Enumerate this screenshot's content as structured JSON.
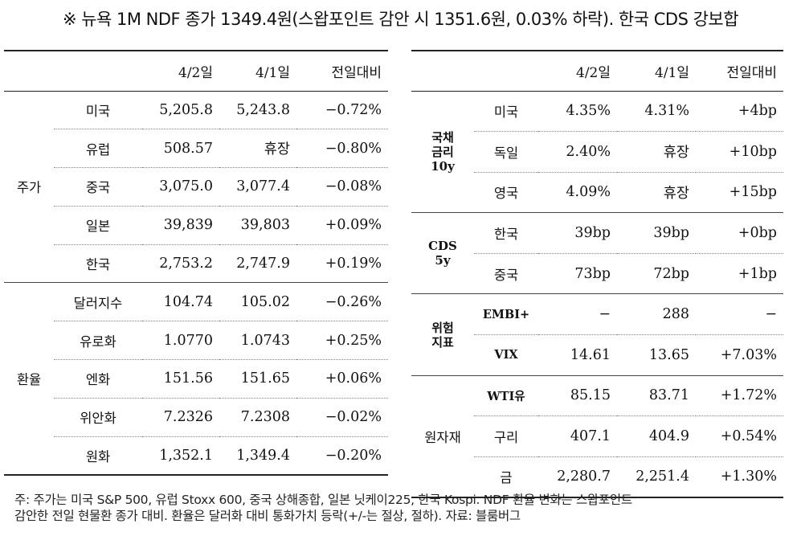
{
  "headline": "※ 뉴욕 1M NDF 종가 1349.4원(스왑포인트 감안 시 1351.6원, 0.03% 하락). 한국 CDS 강보합",
  "left": {
    "headers": [
      "4/2일",
      "4/1일",
      "전일대비"
    ],
    "groups": [
      {
        "category": "주가",
        "rows": [
          {
            "item": "미국",
            "d1": "5,205.8",
            "d2": "5,243.8",
            "chg": "−0.72%"
          },
          {
            "item": "유럽",
            "d1": "508.57",
            "d2": "휴장",
            "chg": "−0.80%"
          },
          {
            "item": "중국",
            "d1": "3,075.0",
            "d2": "3,077.4",
            "chg": "−0.08%"
          },
          {
            "item": "일본",
            "d1": "39,839",
            "d2": "39,803",
            "chg": "+0.09%"
          },
          {
            "item": "한국",
            "d1": "2,753.2",
            "d2": "2,747.9",
            "chg": "+0.19%"
          }
        ]
      },
      {
        "category": "환율",
        "rows": [
          {
            "item": "달러지수",
            "d1": "104.74",
            "d2": "105.02",
            "chg": "−0.26%"
          },
          {
            "item": "유로화",
            "d1": "1.0770",
            "d2": "1.0743",
            "chg": "+0.25%"
          },
          {
            "item": "엔화",
            "d1": "151.56",
            "d2": "151.65",
            "chg": "+0.06%"
          },
          {
            "item": "위안화",
            "d1": "7.2326",
            "d2": "7.2308",
            "chg": "−0.02%"
          },
          {
            "item": "원화",
            "d1": "1,352.1",
            "d2": "1,349.4",
            "chg": "−0.20%"
          }
        ]
      }
    ]
  },
  "right": {
    "headers": [
      "4/2일",
      "4/1일",
      "전일대비"
    ],
    "groups": [
      {
        "category": [
          "국채",
          "금리",
          "10y"
        ],
        "rows": [
          {
            "item": "미국",
            "d1": "4.35%",
            "d2": "4.31%",
            "chg": "+4bp"
          },
          {
            "item": "독일",
            "d1": "2.40%",
            "d2": "휴장",
            "chg": "+10bp"
          },
          {
            "item": "영국",
            "d1": "4.09%",
            "d2": "휴장",
            "chg": "+15bp"
          }
        ]
      },
      {
        "category": [
          "CDS",
          "5y"
        ],
        "rows": [
          {
            "item": "한국",
            "d1": "39bp",
            "d2": "39bp",
            "chg": "+0bp"
          },
          {
            "item": "중국",
            "d1": "73bp",
            "d2": "72bp",
            "chg": "+1bp"
          }
        ]
      },
      {
        "category": [
          "위험",
          "지표"
        ],
        "rows": [
          {
            "item": "EMBI+",
            "d1": "−",
            "d2": "288",
            "chg": "−"
          },
          {
            "item": "VIX",
            "d1": "14.61",
            "d2": "13.65",
            "chg": "+7.03%"
          }
        ]
      },
      {
        "category": [
          "원자재"
        ],
        "rows": [
          {
            "item": "WTI유",
            "d1": "85.15",
            "d2": "83.71",
            "chg": "+1.72%"
          },
          {
            "item": "구리",
            "d1": "407.1",
            "d2": "404.9",
            "chg": "+0.54%"
          },
          {
            "item": "금",
            "d1": "2,280.7",
            "d2": "2,251.4",
            "chg": "+1.30%"
          }
        ]
      }
    ]
  },
  "footnote": [
    "주: 주가는 미국 S&P 500, 유럽 Stoxx 600, 중국 상해종합, 일본 닛케이225, 한국 Kospi. NDF 환율 변화는 스왑포인트",
    "감안한 전일 현물환 종가 대비. 환율은 달러화 대비 통화가치 등락(+/-는 절상, 절하). 자료: 블룸버그"
  ]
}
